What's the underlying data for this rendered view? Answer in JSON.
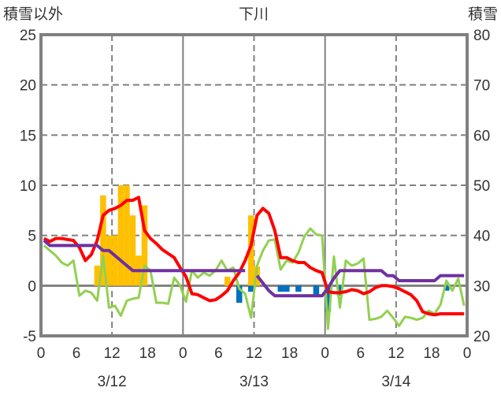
{
  "chart_data": {
    "type": "bar+line",
    "title": "下川",
    "ylabel_left": "積雪以外",
    "ylabel_right": "積雪",
    "ylim_left": [
      -5,
      25
    ],
    "ylim_right": [
      20,
      80
    ],
    "yticks_left": [
      "-5",
      "0",
      "5",
      "10",
      "15",
      "20",
      "25"
    ],
    "yticks_right": [
      "20",
      "30",
      "40",
      "50",
      "60",
      "70",
      "80"
    ],
    "xticks": [
      "0",
      "6",
      "12",
      "18",
      "0",
      "6",
      "12",
      "18",
      "0",
      "6",
      "12",
      "18",
      "0"
    ],
    "day_labels": [
      "3/12",
      "3/13",
      "3/14"
    ],
    "x_hours": 72,
    "bars": [
      [
        9,
        2
      ],
      [
        10,
        9
      ],
      [
        11,
        5
      ],
      [
        12,
        5
      ],
      [
        13,
        10
      ],
      [
        14,
        10
      ],
      [
        15,
        7
      ],
      [
        16,
        3
      ],
      [
        17,
        8
      ],
      [
        31,
        0.9
      ],
      [
        35,
        7
      ],
      [
        36,
        1.9
      ]
    ],
    "bars_negative": [
      [
        33,
        -1.7
      ],
      [
        35,
        -0.6
      ],
      [
        40,
        -0.6
      ],
      [
        41,
        -0.6
      ],
      [
        43,
        -0.6
      ],
      [
        46,
        -1.0
      ],
      [
        48,
        -2.6
      ],
      [
        50,
        -1.0
      ],
      [
        68,
        -0.5
      ]
    ],
    "red": [
      4.7,
      4.4,
      4.7,
      4.7,
      4.6,
      4.5,
      3.8,
      2.5,
      3.1,
      4.5,
      7.0,
      7.5,
      7.7,
      8.0,
      8.5,
      8.5,
      8.8,
      5.5,
      4.7,
      4.2,
      3.6,
      3.2,
      2.8,
      1.8,
      0.9,
      -0.8,
      -0.9,
      -1.2,
      -1.5,
      -1.4,
      -1.0,
      -0.5,
      0.5,
      1.3,
      2.5,
      4.0,
      7.0,
      7.7,
      7.2,
      5.5,
      2.8,
      2.8,
      2.5,
      2.3,
      2.3,
      1.8,
      1.5,
      1.3,
      -0.6,
      -0.7,
      -0.7,
      -0.6,
      -0.4,
      -0.5,
      -0.8,
      -0.6,
      -0.2,
      0,
      0,
      -0.1,
      -0.3,
      -0.6,
      -0.9,
      -1.5,
      -2.6,
      -2.8,
      -2.9,
      -2.8,
      -2.8,
      -2.8,
      -2.8,
      -2.8
    ],
    "green": [
      4.0,
      3.5,
      3.0,
      2.3,
      2.0,
      2.5,
      -1.0,
      -0.5,
      -0.7,
      -1.5,
      3.0,
      -2.2,
      -2.0,
      -3.0,
      -1.5,
      -1.3,
      -1.2,
      2.0,
      1.5,
      -1.7,
      -1.7,
      -1.8,
      0.8,
      0,
      -1.6,
      1.5,
      0.8,
      1.3,
      1.0,
      1.5,
      2.5,
      1.5,
      1.8,
      -0.3,
      -0.8,
      -3.2,
      2.0,
      3.5,
      4.5,
      4.6,
      1.6,
      2.5,
      2.3,
      3.3,
      4.9,
      5.7,
      5.1,
      5.0,
      -4.3,
      2.9,
      -2.2,
      2.5,
      2.0,
      2.2,
      2.7,
      -3.4,
      -3.3,
      -3.1,
      -2.5,
      -3.2,
      -4.0,
      -3.1,
      -3.2,
      -3.4,
      -3.2,
      -2.5,
      -2.8,
      -1.9,
      0.5,
      -0.5,
      0.7,
      -2.0
    ],
    "purple": [
      39,
      38,
      38,
      38,
      38,
      38,
      38,
      38,
      38,
      38,
      37,
      37,
      36,
      35,
      34,
      33,
      33,
      33,
      33,
      33,
      33,
      33,
      33,
      33,
      33,
      33,
      33,
      33,
      33,
      33,
      33,
      33,
      33,
      33,
      33,
      null,
      32,
      30.5,
      29,
      28,
      28,
      28,
      28,
      28,
      28,
      28,
      28,
      28,
      29.5,
      31.5,
      33,
      33,
      33,
      33,
      33,
      33,
      33,
      33,
      32,
      32,
      31,
      31,
      31,
      31,
      31,
      31,
      31,
      32,
      32,
      32,
      32,
      32
    ],
    "colors": {
      "bar_pos": "#ffc000",
      "bar_neg": "#0070c0",
      "red": "#ff0000",
      "green": "#92d050",
      "purple": "#7030a0",
      "frame": "#808080"
    }
  }
}
